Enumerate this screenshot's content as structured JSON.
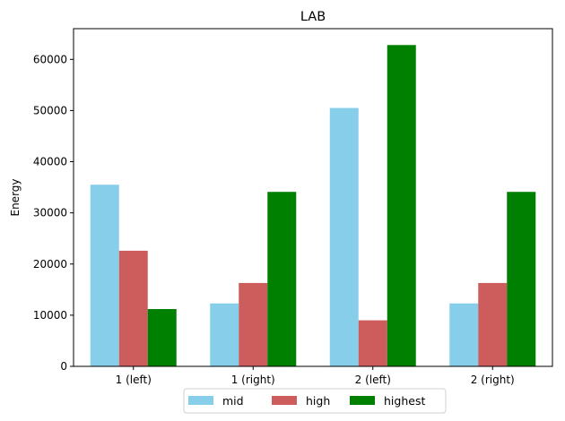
{
  "chart_data": {
    "type": "bar",
    "title": "LAB",
    "xlabel": "",
    "ylabel": "Energy",
    "categories": [
      "1 (left)",
      "1 (right)",
      "2 (left)",
      "2 (right)"
    ],
    "ylim": [
      0,
      66000
    ],
    "yticks": [
      0,
      10000,
      20000,
      30000,
      40000,
      50000,
      60000
    ],
    "ytick_labels": [
      "0",
      "10000",
      "20000",
      "30000",
      "40000",
      "50000",
      "60000"
    ],
    "grid": false,
    "legend_position": "bottom-center",
    "series": [
      {
        "name": "mid",
        "color": "#87ceeb",
        "values": [
          35500,
          12300,
          50500,
          12300
        ]
      },
      {
        "name": "high",
        "color": "#cd5c5c",
        "values": [
          22600,
          16300,
          9000,
          16300
        ]
      },
      {
        "name": "highest",
        "color": "#008000",
        "values": [
          11200,
          34100,
          62800,
          34100
        ]
      }
    ]
  }
}
